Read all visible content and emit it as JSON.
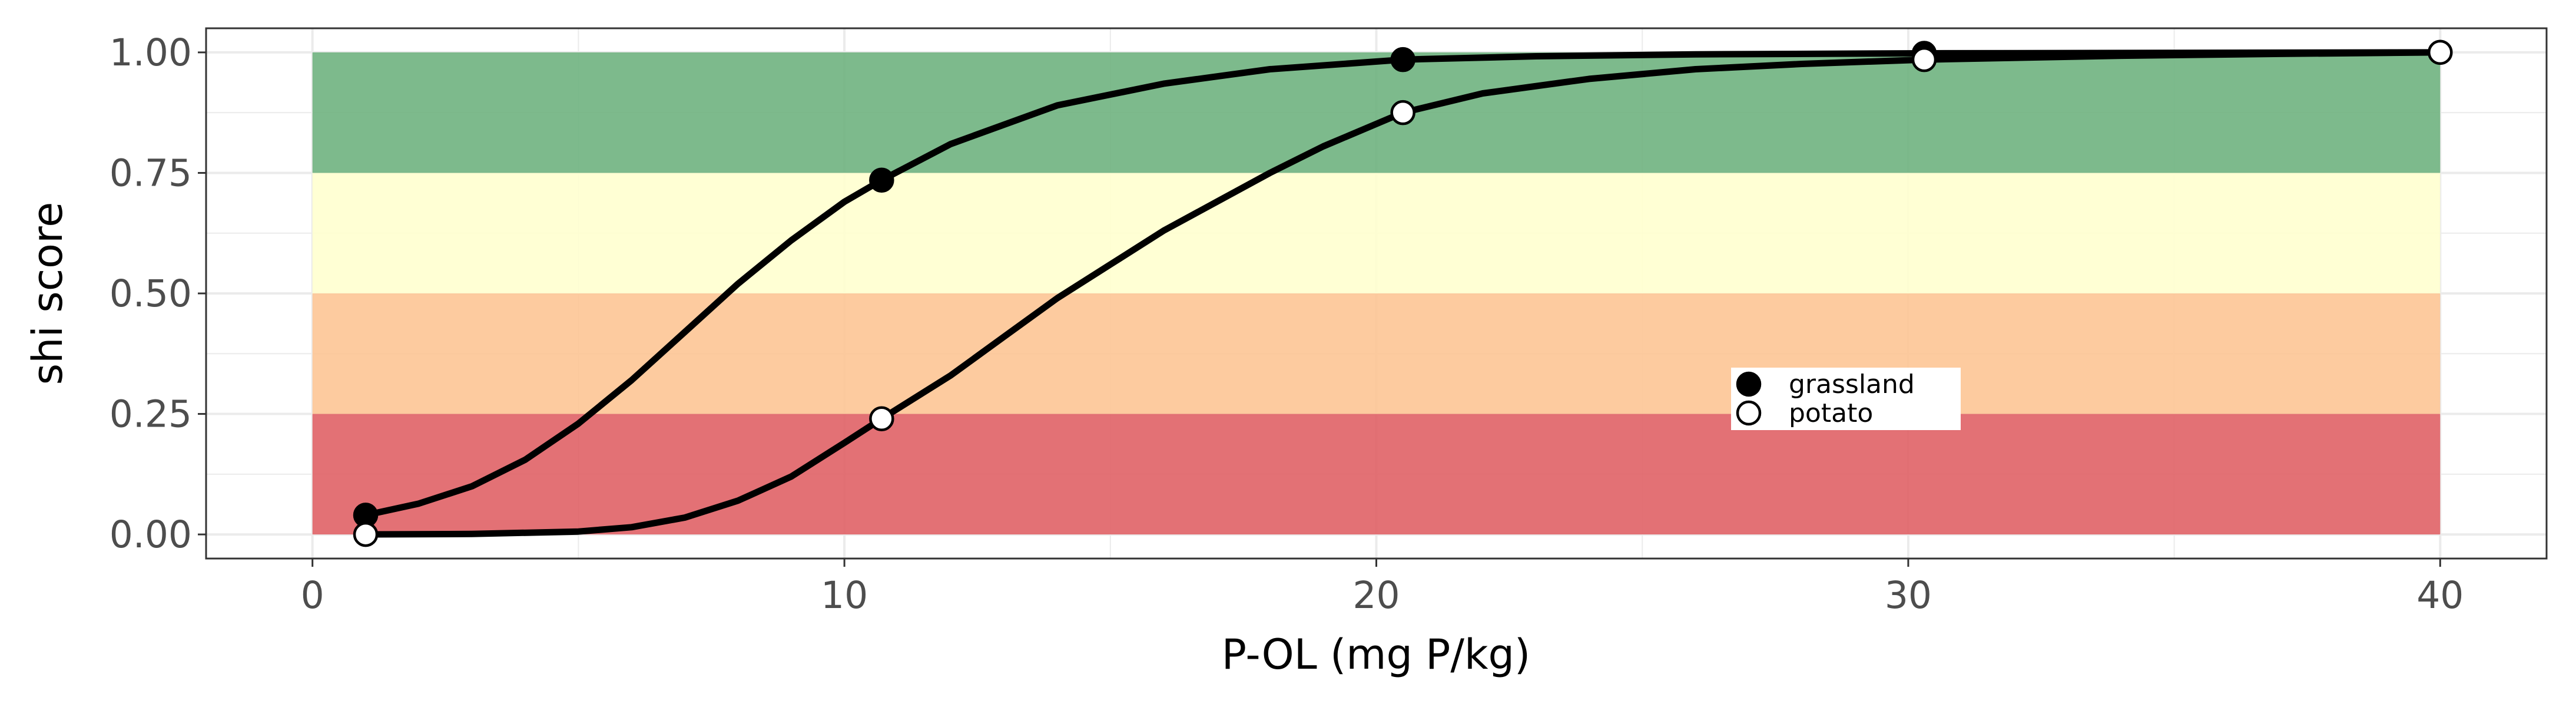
{
  "chart_data": {
    "type": "line",
    "xlabel": "P-OL (mg P/kg)",
    "ylabel": "shi score",
    "xlim": [
      -2,
      42
    ],
    "ylim": [
      -0.05,
      1.05
    ],
    "x_ticks": [
      0,
      10,
      20,
      30,
      40
    ],
    "x_tick_labels": [
      "0",
      "10",
      "20",
      "30",
      "40"
    ],
    "y_ticks": [
      0,
      0.25,
      0.5,
      0.75,
      1
    ],
    "y_tick_labels": [
      "0.00",
      "0.25",
      "0.50",
      "0.75",
      "1.00"
    ],
    "grid": true,
    "bands": [
      {
        "from": 0.0,
        "to": 0.25,
        "x_from": 0,
        "x_to": 40,
        "color": "#e06266"
      },
      {
        "from": 0.25,
        "to": 0.5,
        "x_from": 0,
        "x_to": 40,
        "color": "#fdc595"
      },
      {
        "from": 0.5,
        "to": 0.75,
        "x_from": 0,
        "x_to": 40,
        "color": "#ffffcf"
      },
      {
        "from": 0.75,
        "to": 1.0,
        "x_from": 0,
        "x_to": 40,
        "color": "#6fb380"
      }
    ],
    "series": [
      {
        "name": "grassland",
        "marker": "filled-circle",
        "color": "#000000",
        "points": [
          {
            "x": 1.0,
            "y": 0.04
          },
          {
            "x": 10.7,
            "y": 0.735
          },
          {
            "x": 20.5,
            "y": 0.985
          },
          {
            "x": 30.3,
            "y": 0.998
          },
          {
            "x": 40.0,
            "y": 1.0
          }
        ],
        "curve": [
          {
            "x": 1,
            "y": 0.04
          },
          {
            "x": 2,
            "y": 0.064
          },
          {
            "x": 3,
            "y": 0.1
          },
          {
            "x": 4,
            "y": 0.155
          },
          {
            "x": 5,
            "y": 0.23
          },
          {
            "x": 6,
            "y": 0.32
          },
          {
            "x": 7,
            "y": 0.42
          },
          {
            "x": 8,
            "y": 0.52
          },
          {
            "x": 9,
            "y": 0.61
          },
          {
            "x": 10,
            "y": 0.69
          },
          {
            "x": 10.7,
            "y": 0.735
          },
          {
            "x": 12,
            "y": 0.81
          },
          {
            "x": 14,
            "y": 0.89
          },
          {
            "x": 16,
            "y": 0.935
          },
          {
            "x": 18,
            "y": 0.965
          },
          {
            "x": 20.5,
            "y": 0.985
          },
          {
            "x": 23,
            "y": 0.992
          },
          {
            "x": 26,
            "y": 0.996
          },
          {
            "x": 30.3,
            "y": 0.998
          },
          {
            "x": 35,
            "y": 0.999
          },
          {
            "x": 40,
            "y": 1.0
          }
        ]
      },
      {
        "name": "potato",
        "marker": "open-circle",
        "color": "#000000",
        "points": [
          {
            "x": 1.0,
            "y": 0.0
          },
          {
            "x": 10.7,
            "y": 0.24
          },
          {
            "x": 20.5,
            "y": 0.875
          },
          {
            "x": 30.3,
            "y": 0.985
          },
          {
            "x": 40.0,
            "y": 1.0
          }
        ],
        "curve": [
          {
            "x": 1,
            "y": 0.0
          },
          {
            "x": 3,
            "y": 0.001
          },
          {
            "x": 5,
            "y": 0.006
          },
          {
            "x": 6,
            "y": 0.015
          },
          {
            "x": 7,
            "y": 0.035
          },
          {
            "x": 8,
            "y": 0.07
          },
          {
            "x": 9,
            "y": 0.12
          },
          {
            "x": 10,
            "y": 0.19
          },
          {
            "x": 10.7,
            "y": 0.24
          },
          {
            "x": 12,
            "y": 0.33
          },
          {
            "x": 13,
            "y": 0.41
          },
          {
            "x": 14,
            "y": 0.49
          },
          {
            "x": 15,
            "y": 0.56
          },
          {
            "x": 16,
            "y": 0.63
          },
          {
            "x": 17,
            "y": 0.69
          },
          {
            "x": 18,
            "y": 0.75
          },
          {
            "x": 19,
            "y": 0.805
          },
          {
            "x": 20.5,
            "y": 0.875
          },
          {
            "x": 22,
            "y": 0.915
          },
          {
            "x": 24,
            "y": 0.945
          },
          {
            "x": 26,
            "y": 0.965
          },
          {
            "x": 28,
            "y": 0.976
          },
          {
            "x": 30.3,
            "y": 0.985
          },
          {
            "x": 34,
            "y": 0.993
          },
          {
            "x": 37,
            "y": 0.997
          },
          {
            "x": 40,
            "y": 1.0
          }
        ]
      }
    ],
    "legend": {
      "position": "inside-right",
      "entries": [
        "grassland",
        "potato"
      ]
    }
  }
}
